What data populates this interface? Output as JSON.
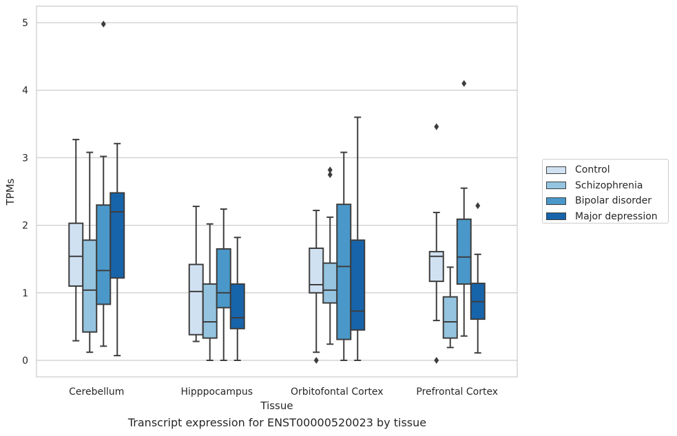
{
  "caption": "Transcript expression for ENST00000520023 by tissue",
  "chart_data": {
    "type": "box",
    "title": "",
    "xlabel": "Tissue",
    "ylabel": "TPMs",
    "ylim": [
      -0.25,
      5.25
    ],
    "yticks": [
      0,
      1,
      2,
      3,
      4,
      5
    ],
    "grid": "horizontal",
    "legend_position": "right",
    "categories": [
      "Cerebellum",
      "Hipppocampus",
      "Orbitofontal Cortex",
      "Prefrontal Cortex"
    ],
    "series": [
      {
        "name": "Control",
        "color": "#d0e1f2",
        "boxes": [
          {
            "whislo": 0.29,
            "q1": 1.1,
            "med": 1.54,
            "q3": 2.03,
            "whishi": 3.27,
            "fliers": []
          },
          {
            "whislo": 0.28,
            "q1": 0.38,
            "med": 1.02,
            "q3": 1.42,
            "whishi": 2.28,
            "fliers": []
          },
          {
            "whislo": 0.12,
            "q1": 1.0,
            "med": 1.12,
            "q3": 1.66,
            "whishi": 2.22,
            "fliers": [
              0.0
            ]
          },
          {
            "whislo": 0.59,
            "q1": 1.17,
            "med": 1.54,
            "q3": 1.61,
            "whishi": 2.19,
            "fliers": [
              3.46,
              0.0
            ]
          }
        ]
      },
      {
        "name": "Schizophrenia",
        "color": "#94c4df",
        "boxes": [
          {
            "whislo": 0.12,
            "q1": 0.42,
            "med": 1.04,
            "q3": 1.78,
            "whishi": 3.08,
            "fliers": []
          },
          {
            "whislo": 0.0,
            "q1": 0.33,
            "med": 0.57,
            "q3": 1.13,
            "whishi": 2.02,
            "fliers": []
          },
          {
            "whislo": 0.24,
            "q1": 0.85,
            "med": 1.04,
            "q3": 1.44,
            "whishi": 2.12,
            "fliers": [
              2.82,
              2.75
            ]
          },
          {
            "whislo": 0.19,
            "q1": 0.33,
            "med": 0.57,
            "q3": 0.94,
            "whishi": 1.38,
            "fliers": []
          }
        ]
      },
      {
        "name": "Bipolar disorder",
        "color": "#4a98c9",
        "boxes": [
          {
            "whislo": 0.21,
            "q1": 0.83,
            "med": 1.33,
            "q3": 2.3,
            "whishi": 3.02,
            "fliers": [
              4.98
            ]
          },
          {
            "whislo": 0.0,
            "q1": 0.78,
            "med": 1.0,
            "q3": 1.65,
            "whishi": 2.24,
            "fliers": []
          },
          {
            "whislo": 0.0,
            "q1": 0.31,
            "med": 1.39,
            "q3": 2.31,
            "whishi": 3.08,
            "fliers": []
          },
          {
            "whislo": 0.36,
            "q1": 1.13,
            "med": 1.53,
            "q3": 2.09,
            "whishi": 2.55,
            "fliers": [
              4.1
            ]
          }
        ]
      },
      {
        "name": "Major depression",
        "color": "#1764ab",
        "boxes": [
          {
            "whislo": 0.07,
            "q1": 1.22,
            "med": 2.2,
            "q3": 2.48,
            "whishi": 3.21,
            "fliers": []
          },
          {
            "whislo": 0.0,
            "q1": 0.47,
            "med": 0.63,
            "q3": 1.13,
            "whishi": 1.82,
            "fliers": []
          },
          {
            "whislo": 0.0,
            "q1": 0.45,
            "med": 0.73,
            "q3": 1.78,
            "whishi": 3.6,
            "fliers": []
          },
          {
            "whislo": 0.11,
            "q1": 0.61,
            "med": 0.87,
            "q3": 1.14,
            "whishi": 1.57,
            "fliers": [
              2.29
            ]
          }
        ]
      }
    ]
  }
}
